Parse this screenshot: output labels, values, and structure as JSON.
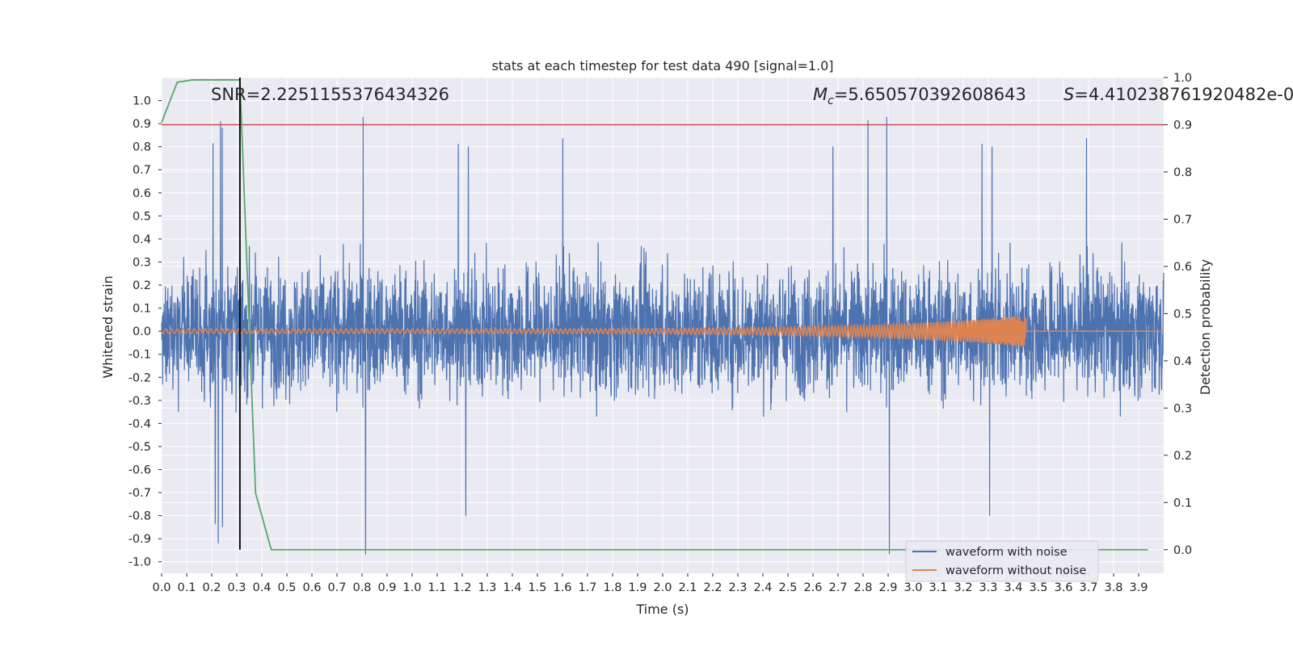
{
  "chart_data": {
    "type": "line",
    "title": "stats at each timestep for test data 490 [signal=1.0]",
    "xlabel": "Time (s)",
    "ylabel": "Whitened strain",
    "ylabel_right": "Detection probability",
    "xlim": [
      0.0,
      4.0
    ],
    "ylim_left": [
      -1.05,
      1.1
    ],
    "ylim_right": [
      -0.05,
      1.0
    ],
    "grid": true,
    "legend_position": "lower-right",
    "x_ticks": [
      "0.0",
      "0.1",
      "0.2",
      "0.3",
      "0.4",
      "0.5",
      "0.6",
      "0.7",
      "0.8",
      "0.9",
      "1.0",
      "1.1",
      "1.2",
      "1.3",
      "1.4",
      "1.5",
      "1.6",
      "1.7",
      "1.8",
      "1.9",
      "2.0",
      "2.1",
      "2.2",
      "2.3",
      "2.4",
      "2.5",
      "2.6",
      "2.7",
      "2.8",
      "2.9",
      "3.0",
      "3.1",
      "3.2",
      "3.3",
      "3.4",
      "3.5",
      "3.6",
      "3.7",
      "3.8",
      "3.9"
    ],
    "y_ticks_left": [
      "1.0",
      "0.9",
      "0.8",
      "0.7",
      "0.6",
      "0.5",
      "0.4",
      "0.3",
      "0.2",
      "0.1",
      "0.0",
      "-0.1",
      "-0.2",
      "-0.3",
      "-0.4",
      "-0.5",
      "-0.6",
      "-0.7",
      "-0.8",
      "-0.9",
      "-1.0"
    ],
    "y_ticks_right": [
      "1.0",
      "0.9",
      "0.8",
      "0.7",
      "0.6",
      "0.5",
      "0.4",
      "0.3",
      "0.2",
      "0.1",
      "0.0"
    ],
    "annotations": {
      "snr": "SNR=2.2251155376434326",
      "mc_prefix": "M",
      "mc_sub": "c",
      "mc_value": "=5.650570392608643",
      "s_prefix": "S",
      "s_value": "=4.410238761920482e-0"
    },
    "series": [
      {
        "name": "waveform with noise",
        "color": "#4c72b0",
        "axis": "left",
        "description": "dense noise, amplitude mostly within ±0.5 with spikes to ~±1.0"
      },
      {
        "name": "waveform without noise",
        "color": "#dd8452",
        "axis": "left",
        "chirp": {
          "start_time": 0.0,
          "merger_time": 3.45,
          "amplitude_start": 0.01,
          "amplitude_end": 0.07
        }
      },
      {
        "name": "detection probability",
        "color": "#55a868",
        "axis": "right",
        "x": [
          0.0,
          0.0625,
          0.125,
          0.1875,
          0.25,
          0.3125,
          0.375,
          0.4375,
          0.5,
          3.9375
        ],
        "y": [
          0.905,
          0.99,
          0.995,
          0.995,
          0.995,
          0.995,
          0.12,
          0.0,
          0.0,
          0.0
        ]
      }
    ],
    "threshold": {
      "axis": "right",
      "value": 0.9,
      "color": "#c44e52"
    },
    "vline": {
      "x": 0.3125,
      "y_from": 0.0,
      "y_to": 1.0,
      "axis": "right",
      "color": "#000000"
    }
  }
}
